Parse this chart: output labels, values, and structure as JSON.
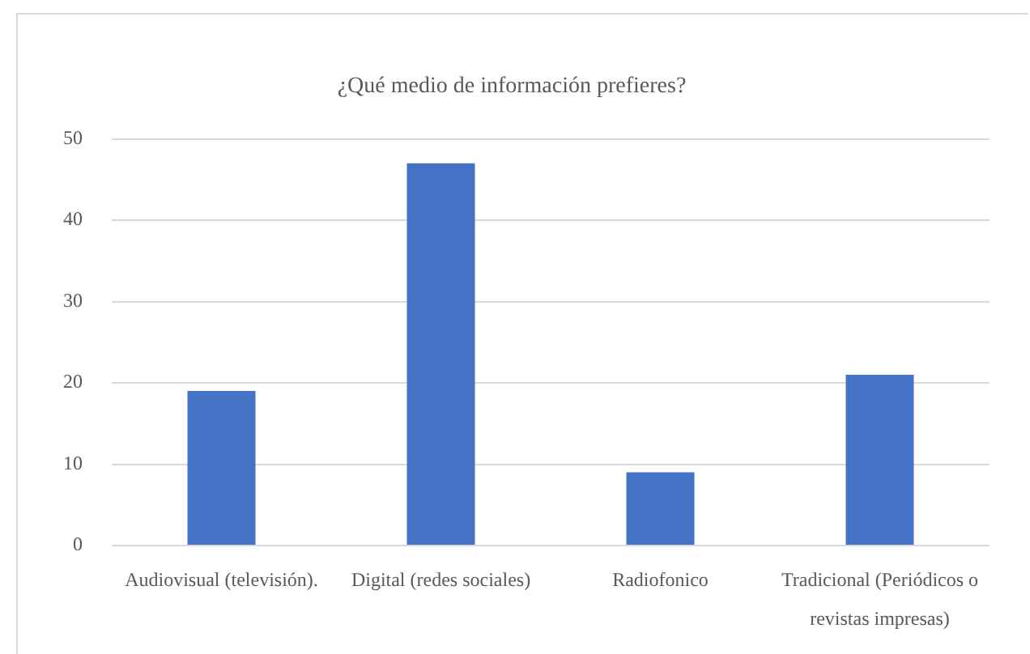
{
  "chart_data": {
    "type": "bar",
    "title": "¿Qué medio de información prefieres?",
    "categories": [
      "Audiovisual (televisión).",
      "Digital (redes sociales)",
      "Radiofonico",
      "Tradicional (Periódicos o revistas impresas)"
    ],
    "values": [
      19,
      47,
      9,
      21
    ],
    "color": "#4472c4",
    "ylim": [
      0,
      50
    ],
    "yticks": [
      0,
      10,
      20,
      30,
      40,
      50
    ],
    "grid": "y",
    "legend": false
  }
}
